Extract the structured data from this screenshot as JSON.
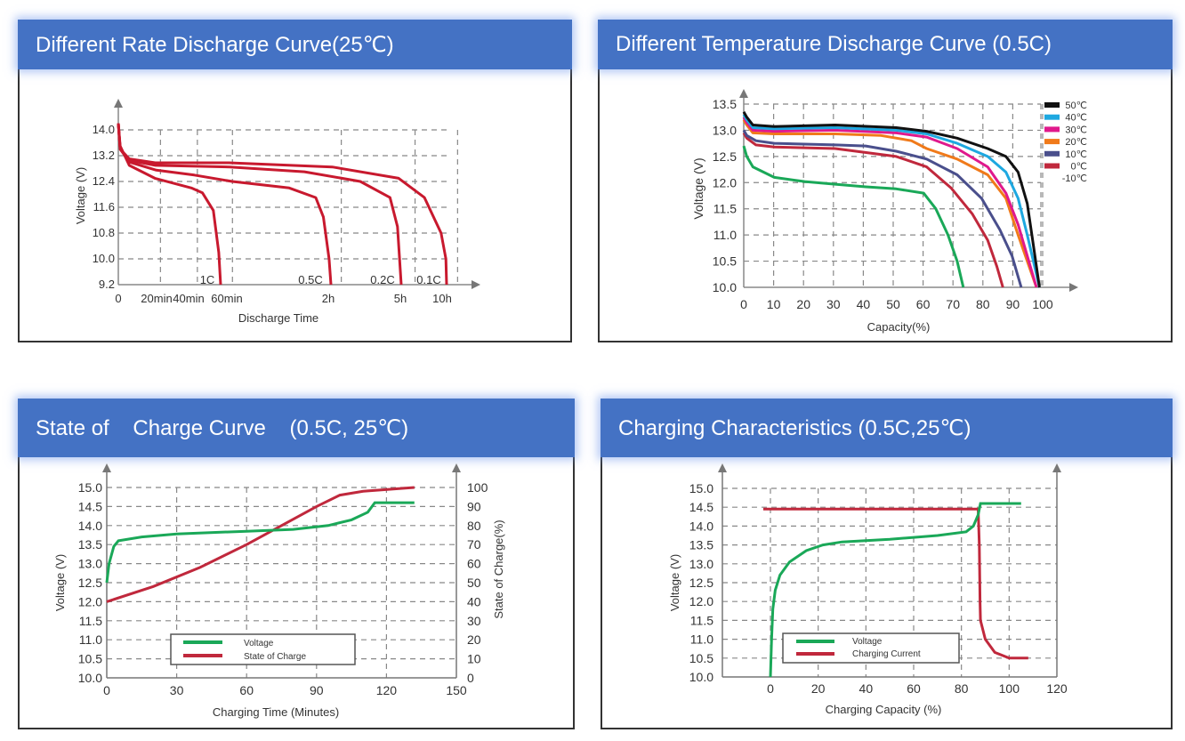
{
  "chart_data": [
    {
      "id": "rate",
      "type": "line",
      "title": "Different Rate Discharge Curve(25℃)",
      "xlabel": "Discharge Time",
      "ylabel": "Voltage (V)",
      "yticks": [
        "14.0",
        "13.2",
        "12.4",
        "11.6",
        "10.8",
        "10.0",
        "9.2"
      ],
      "ylim": [
        9.2,
        14.0
      ],
      "xtick_labels": [
        "0",
        "20min",
        "40min",
        "60min",
        "2h",
        "5h",
        "10h"
      ],
      "x_scale_note": "non-linear time axis; x positions given as index units 0..10 mapping ticks",
      "xtick_positions": [
        0,
        0.9,
        1.9,
        2.85,
        5.75,
        7.7,
        8.9
      ],
      "xlim": [
        0,
        10
      ],
      "grid": true,
      "line_color": "#c8192e",
      "series": [
        {
          "name": "1C",
          "label_x": 2.5,
          "points": [
            [
              0,
              14.2
            ],
            [
              0.05,
              13.5
            ],
            [
              0.3,
              12.9
            ],
            [
              1,
              12.5
            ],
            [
              2,
              12.2
            ],
            [
              2.3,
              12.05
            ],
            [
              2.6,
              11.5
            ],
            [
              2.75,
              10.2
            ],
            [
              2.8,
              9.2
            ]
          ]
        },
        {
          "name": "0.5C",
          "label_x": 5.3,
          "points": [
            [
              0,
              14.2
            ],
            [
              0.05,
              13.4
            ],
            [
              0.3,
              13.0
            ],
            [
              1,
              12.75
            ],
            [
              2,
              12.6
            ],
            [
              3,
              12.4
            ],
            [
              4.5,
              12.2
            ],
            [
              5.2,
              11.9
            ],
            [
              5.4,
              11.3
            ],
            [
              5.55,
              10.0
            ],
            [
              5.6,
              9.2
            ]
          ]
        },
        {
          "name": "0.2C",
          "label_x": 7.4,
          "points": [
            [
              0,
              14.2
            ],
            [
              0.05,
              13.4
            ],
            [
              0.3,
              13.05
            ],
            [
              1,
              12.9
            ],
            [
              3,
              12.85
            ],
            [
              5,
              12.7
            ],
            [
              6.5,
              12.4
            ],
            [
              7.3,
              11.9
            ],
            [
              7.5,
              11.0
            ],
            [
              7.6,
              9.2
            ]
          ]
        },
        {
          "name": "0.1C",
          "label_x": 8.7,
          "points": [
            [
              0,
              14.2
            ],
            [
              0.05,
              13.4
            ],
            [
              0.3,
              13.1
            ],
            [
              1,
              12.98
            ],
            [
              3,
              12.98
            ],
            [
              5.8,
              12.85
            ],
            [
              7.6,
              12.5
            ],
            [
              8.3,
              11.9
            ],
            [
              8.75,
              10.8
            ],
            [
              8.88,
              10.0
            ],
            [
              8.9,
              9.2
            ]
          ]
        }
      ]
    },
    {
      "id": "temp",
      "type": "line",
      "title": "Different Temperature Discharge Curve (0.5C)",
      "xlabel": "Capacity(%)",
      "ylabel": "Voltage (V)",
      "yticks": [
        "13.5",
        "13.0",
        "12.5",
        "12.0",
        "11.5",
        "11.0",
        "10.5",
        "10.0"
      ],
      "ylim": [
        10.0,
        13.5
      ],
      "xticks": [
        "0",
        "10",
        "20",
        "30",
        "40",
        "50",
        "60",
        "70",
        "80",
        "90",
        "100"
      ],
      "xlim": [
        0,
        110
      ],
      "grid": true,
      "legend": "right",
      "series": [
        {
          "name": "50℃",
          "color": "#111111",
          "points": [
            [
              0,
              13.35
            ],
            [
              1,
              13.25
            ],
            [
              3,
              13.1
            ],
            [
              10,
              13.07
            ],
            [
              30,
              13.1
            ],
            [
              50,
              13.05
            ],
            [
              60,
              12.98
            ],
            [
              70,
              12.85
            ],
            [
              80,
              12.65
            ],
            [
              86,
              12.5
            ],
            [
              90,
              12.2
            ],
            [
              93,
              11.6
            ],
            [
              95,
              10.8
            ],
            [
              97,
              10.0
            ]
          ]
        },
        {
          "name": "40℃",
          "color": "#1ea8e0",
          "points": [
            [
              0,
              13.3
            ],
            [
              1,
              13.2
            ],
            [
              3,
              13.05
            ],
            [
              10,
              13.03
            ],
            [
              30,
              13.05
            ],
            [
              50,
              13.0
            ],
            [
              60,
              12.93
            ],
            [
              70,
              12.75
            ],
            [
              80,
              12.5
            ],
            [
              86,
              12.2
            ],
            [
              90,
              11.7
            ],
            [
              93,
              11.0
            ],
            [
              97,
              10.0
            ]
          ]
        },
        {
          "name": "30℃",
          "color": "#e0198c",
          "points": [
            [
              0,
              13.25
            ],
            [
              1,
              13.15
            ],
            [
              3,
              13.0
            ],
            [
              10,
              12.98
            ],
            [
              30,
              13.0
            ],
            [
              50,
              12.95
            ],
            [
              60,
              12.87
            ],
            [
              70,
              12.65
            ],
            [
              80,
              12.3
            ],
            [
              86,
              11.8
            ],
            [
              90,
              11.2
            ],
            [
              93,
              10.6
            ],
            [
              96,
              10.0
            ]
          ]
        },
        {
          "name": "20℃",
          "color": "#f07a1a",
          "points": [
            [
              0,
              13.2
            ],
            [
              1,
              13.1
            ],
            [
              3,
              12.95
            ],
            [
              10,
              12.93
            ],
            [
              30,
              12.93
            ],
            [
              45,
              12.9
            ],
            [
              55,
              12.8
            ],
            [
              60,
              12.65
            ],
            [
              70,
              12.45
            ],
            [
              80,
              12.15
            ],
            [
              86,
              11.7
            ],
            [
              90,
              11.0
            ],
            [
              93,
              10.5
            ],
            [
              96,
              10.0
            ]
          ]
        },
        {
          "name": "10℃",
          "color": "#4a4f8c",
          "points": [
            [
              0,
              13.0
            ],
            [
              1,
              12.9
            ],
            [
              4,
              12.8
            ],
            [
              10,
              12.75
            ],
            [
              30,
              12.72
            ],
            [
              40,
              12.7
            ],
            [
              50,
              12.6
            ],
            [
              60,
              12.45
            ],
            [
              70,
              12.15
            ],
            [
              78,
              11.7
            ],
            [
              84,
              11.1
            ],
            [
              88,
              10.6
            ],
            [
              91,
              10.0
            ]
          ]
        },
        {
          "name": "0℃",
          "color": "#c0283c",
          "points": [
            [
              0,
              12.95
            ],
            [
              1,
              12.85
            ],
            [
              4,
              12.72
            ],
            [
              10,
              12.68
            ],
            [
              30,
              12.65
            ],
            [
              50,
              12.5
            ],
            [
              60,
              12.3
            ],
            [
              68,
              11.9
            ],
            [
              75,
              11.4
            ],
            [
              80,
              10.9
            ],
            [
              83,
              10.4
            ],
            [
              85,
              10.0
            ]
          ]
        },
        {
          "name": "-10℃",
          "color": "#1aa858",
          "points": [
            [
              0,
              12.7
            ],
            [
              1,
              12.5
            ],
            [
              3,
              12.3
            ],
            [
              10,
              12.1
            ],
            [
              20,
              12.02
            ],
            [
              30,
              11.97
            ],
            [
              40,
              11.92
            ],
            [
              50,
              11.88
            ],
            [
              59,
              11.8
            ],
            [
              63,
              11.5
            ],
            [
              67,
              11.0
            ],
            [
              70,
              10.5
            ],
            [
              72,
              10.0
            ]
          ]
        }
      ]
    },
    {
      "id": "soc",
      "type": "line",
      "title": "State of    Charge Curve    (0.5C, 25℃)",
      "xlabel": "Charging Time (Minutes)",
      "ylabel": "Voltage (V)",
      "y2label": "State of Charge(%)",
      "yticks": [
        "15.0",
        "14.5",
        "14.0",
        "13.5",
        "13.0",
        "12.5",
        "12.0",
        "11.5",
        "11.0",
        "10.5",
        "10.0"
      ],
      "ylim": [
        10.0,
        15.0
      ],
      "y2ticks": [
        "100",
        "90",
        "80",
        "70",
        "60",
        "50",
        "40",
        "30",
        "20",
        "10",
        "0"
      ],
      "y2lim": [
        0,
        100
      ],
      "xticks": [
        "0",
        "30",
        "60",
        "90",
        "120",
        "150"
      ],
      "xlim": [
        0,
        150
      ],
      "grid": true,
      "legend": "bottom-center",
      "series": [
        {
          "name": "Voltage",
          "color": "#1aa858",
          "axis": "left",
          "points": [
            [
              0,
              12.5
            ],
            [
              1,
              13.0
            ],
            [
              3,
              13.45
            ],
            [
              5,
              13.6
            ],
            [
              15,
              13.7
            ],
            [
              30,
              13.78
            ],
            [
              60,
              13.85
            ],
            [
              80,
              13.9
            ],
            [
              95,
              14.0
            ],
            [
              105,
              14.15
            ],
            [
              112,
              14.35
            ],
            [
              115,
              14.6
            ],
            [
              132,
              14.6
            ]
          ]
        },
        {
          "name": "State of Charge",
          "color": "#c0283c",
          "axis": "right",
          "points": [
            [
              0,
              40
            ],
            [
              20,
              48
            ],
            [
              40,
              58
            ],
            [
              60,
              70
            ],
            [
              75,
              80
            ],
            [
              90,
              90
            ],
            [
              100,
              96
            ],
            [
              110,
              98
            ],
            [
              132,
              100
            ]
          ]
        }
      ]
    },
    {
      "id": "charge",
      "type": "line",
      "title": "Charging Characteristics (0.5C,25℃)",
      "xlabel": "Charging Capacity (%)",
      "ylabel": "Voltage (V)",
      "yticks": [
        "15.0",
        "14.5",
        "14.0",
        "13.5",
        "13.0",
        "12.5",
        "12.0",
        "11.5",
        "11.0",
        "10.5",
        "10.0"
      ],
      "ylim": [
        10.0,
        15.0
      ],
      "xticks": [
        "0",
        "20",
        "40",
        "60",
        "80",
        "100",
        "120"
      ],
      "xlim": [
        -21,
        120
      ],
      "grid": true,
      "legend": "bottom-center",
      "series": [
        {
          "name": "Voltage",
          "color": "#1aa858",
          "points": [
            [
              0,
              10.0
            ],
            [
              0.5,
              11.0
            ],
            [
              1,
              11.8
            ],
            [
              2,
              12.3
            ],
            [
              4,
              12.7
            ],
            [
              8,
              13.05
            ],
            [
              15,
              13.35
            ],
            [
              22,
              13.5
            ],
            [
              30,
              13.58
            ],
            [
              50,
              13.65
            ],
            [
              70,
              13.75
            ],
            [
              82,
              13.85
            ],
            [
              85,
              14.0
            ],
            [
              87,
              14.3
            ],
            [
              88,
              14.6
            ],
            [
              105,
              14.6
            ]
          ]
        },
        {
          "name": "Charging Current",
          "color": "#c0283c",
          "points": [
            [
              -3,
              14.45
            ],
            [
              87,
              14.45
            ],
            [
              87.5,
              13.5
            ],
            [
              87.8,
              12.0
            ],
            [
              88,
              11.5
            ],
            [
              90,
              11.0
            ],
            [
              94,
              10.65
            ],
            [
              100,
              10.5
            ],
            [
              108,
              10.5
            ]
          ]
        }
      ]
    }
  ]
}
